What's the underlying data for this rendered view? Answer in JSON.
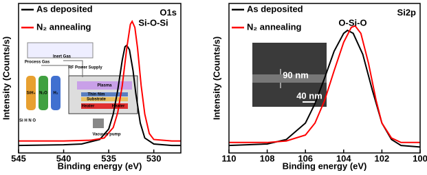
{
  "chart_data": [
    {
      "type": "line",
      "panel_label": "O1s",
      "peak_label": "Si-O-Si",
      "xlabel": "Binding energy (eV)",
      "ylabel": "Intensity (Counts/s)",
      "xlim": [
        545,
        527
      ],
      "xticks": [
        545,
        540,
        535,
        530
      ],
      "ylim": [
        0,
        1
      ],
      "series": [
        {
          "name": "As deposited",
          "color": "#000000",
          "x": [
            545,
            540,
            538,
            536,
            535,
            534.5,
            534,
            533.5,
            533.2,
            533,
            532.7,
            532.3,
            532,
            531.5,
            531,
            530,
            528,
            527
          ],
          "values": [
            0.05,
            0.055,
            0.06,
            0.09,
            0.16,
            0.26,
            0.42,
            0.62,
            0.71,
            0.72,
            0.69,
            0.55,
            0.4,
            0.2,
            0.1,
            0.06,
            0.05,
            0.05
          ]
        },
        {
          "name": "N₂ annealing",
          "color": "#ff0000",
          "x": [
            545,
            540,
            537,
            535.5,
            534.5,
            534,
            533.5,
            533,
            532.6,
            532.4,
            532.1,
            531.8,
            531.4,
            531,
            530.5,
            530,
            528,
            527
          ],
          "values": [
            0.08,
            0.08,
            0.085,
            0.1,
            0.17,
            0.27,
            0.45,
            0.7,
            0.86,
            0.88,
            0.84,
            0.7,
            0.45,
            0.26,
            0.13,
            0.09,
            0.08,
            0.08
          ]
        }
      ],
      "inset_labels": [
        "Process Gas",
        "Inert Gas",
        "RF Power Supply",
        "Plasma",
        "Thin film",
        "Substrate",
        "Heater",
        "Heater",
        "Vacuum pump",
        "SiH₄",
        "N₂O",
        "H₂",
        "Si H N O"
      ]
    },
    {
      "type": "line",
      "panel_label": "Si2p",
      "peak_label": "O-Si-O",
      "xlabel": "Binding energy (eV)",
      "ylabel": "Intensity (Counts/s)",
      "xlim": [
        110,
        100
      ],
      "xticks": [
        110,
        108,
        106,
        104,
        102,
        100
      ],
      "ylim": [
        0,
        1
      ],
      "series": [
        {
          "name": "As deposited",
          "color": "#000000",
          "x": [
            110,
            108,
            107,
            106,
            105.5,
            105,
            104.5,
            104,
            103.8,
            103.5,
            103,
            102.5,
            102,
            101.5,
            101,
            100
          ],
          "values": [
            0.05,
            0.06,
            0.09,
            0.2,
            0.33,
            0.5,
            0.68,
            0.8,
            0.82,
            0.8,
            0.66,
            0.42,
            0.2,
            0.09,
            0.05,
            0.04
          ]
        },
        {
          "name": "N₂ annealing",
          "color": "#ff0000",
          "x": [
            110,
            108,
            107,
            106,
            105.5,
            105,
            104.5,
            104,
            103.6,
            103.4,
            103.1,
            102.7,
            102.3,
            102,
            101.5,
            101,
            100
          ],
          "values": [
            0.07,
            0.07,
            0.08,
            0.12,
            0.2,
            0.35,
            0.55,
            0.74,
            0.84,
            0.85,
            0.8,
            0.6,
            0.35,
            0.2,
            0.1,
            0.07,
            0.07
          ]
        }
      ],
      "inset_labels": [
        "90 nm",
        "40 nm"
      ]
    }
  ]
}
